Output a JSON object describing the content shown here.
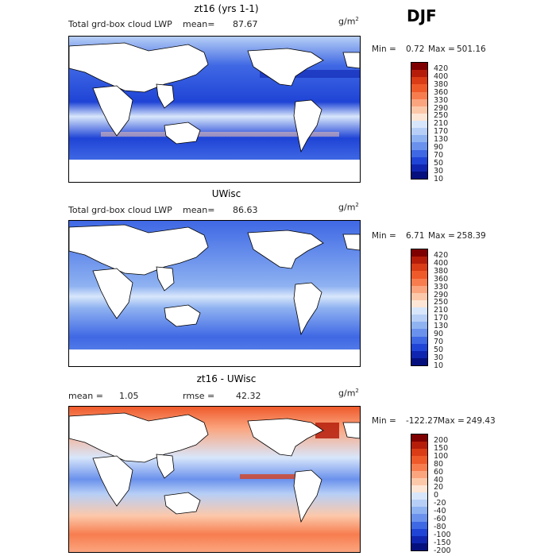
{
  "season_label": "DJF",
  "panels": [
    {
      "title": "zt16 (yrs 1-1)",
      "left_text": "Total grd-box cloud LWP",
      "mean_label": "mean=",
      "mean_value": "87.67",
      "units": "g/m",
      "units_exp": "2",
      "min_label": "Min =",
      "min_value": "0.72",
      "max_label": "Max =",
      "max_value": "501.16",
      "colorbar": [
        "420",
        "400",
        "380",
        "360",
        "330",
        "290",
        "250",
        "210",
        "170",
        "130",
        "90",
        "70",
        "50",
        "30",
        "10"
      ],
      "colors": [
        "#7f0000",
        "#b51d0a",
        "#d93c16",
        "#ef5a2b",
        "#f77d4f",
        "#fba57f",
        "#fcc8aa",
        "#fde6d6",
        "#d8e6fb",
        "#b7cff6",
        "#8fb2f1",
        "#6a91ec",
        "#3f68e4",
        "#1f44d6",
        "#0f25b0",
        "#05107e"
      ]
    },
    {
      "title": "UWisc",
      "left_text": "Total grd-box cloud LWP",
      "mean_label": "mean=",
      "mean_value": "86.63",
      "units": "g/m",
      "units_exp": "2",
      "min_label": "Min =",
      "min_value": "6.71",
      "max_label": "Max =",
      "max_value": "258.39",
      "colorbar": [
        "420",
        "400",
        "380",
        "360",
        "330",
        "290",
        "250",
        "210",
        "170",
        "130",
        "90",
        "70",
        "50",
        "30",
        "10"
      ],
      "colors": [
        "#7f0000",
        "#b51d0a",
        "#d93c16",
        "#ef5a2b",
        "#f77d4f",
        "#fba57f",
        "#fcc8aa",
        "#fde6d6",
        "#d8e6fb",
        "#b7cff6",
        "#8fb2f1",
        "#6a91ec",
        "#3f68e4",
        "#1f44d6",
        "#0f25b0",
        "#05107e"
      ]
    },
    {
      "title": "zt16 - UWisc",
      "left_text": "mean =",
      "mean_label": "",
      "mean_value": "1.05",
      "rmse_label": "rmse =",
      "rmse_value": "42.32",
      "units": "g/m",
      "units_exp": "2",
      "min_label": "Min =",
      "min_value": "-122.27",
      "max_label": "Max =",
      "max_value": "249.43",
      "colorbar": [
        "200",
        "150",
        "100",
        "80",
        "60",
        "40",
        "20",
        "0",
        "-20",
        "-40",
        "-60",
        "-80",
        "-100",
        "-150",
        "-200"
      ],
      "colors": [
        "#7f0000",
        "#b51d0a",
        "#d93c16",
        "#ef5a2b",
        "#f77d4f",
        "#fba57f",
        "#fcc8aa",
        "#fde6d6",
        "#d8e6fb",
        "#b7cff6",
        "#8fb2f1",
        "#6a91ec",
        "#3f68e4",
        "#1f44d6",
        "#0f25b0",
        "#05107e"
      ]
    }
  ]
}
